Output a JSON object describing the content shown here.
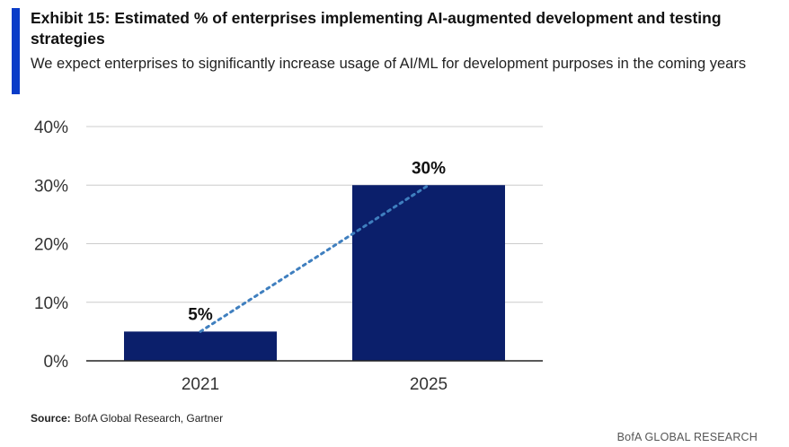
{
  "header": {
    "title": "Exhibit 15: Estimated % of enterprises implementing AI-augmented development and testing strategies",
    "subtitle": "We expect enterprises to significantly increase usage of AI/ML for development purposes in the coming years"
  },
  "chart_data": {
    "type": "bar",
    "categories": [
      "2021",
      "2025"
    ],
    "values": [
      5,
      30
    ],
    "data_labels": [
      "5%",
      "30%"
    ],
    "y_ticks": [
      "0%",
      "10%",
      "20%",
      "30%",
      "40%"
    ],
    "ylim": [
      0,
      40
    ],
    "grid": true,
    "trendline": "dotted",
    "colors": {
      "bar": "#0b1f6b",
      "trend": "#3f7fbf",
      "grid": "#cccccc"
    }
  },
  "footer": {
    "source_label": "Source:",
    "source_text": "BofA Global Research, Gartner",
    "brand": "BofA GLOBAL RESEARCH"
  }
}
